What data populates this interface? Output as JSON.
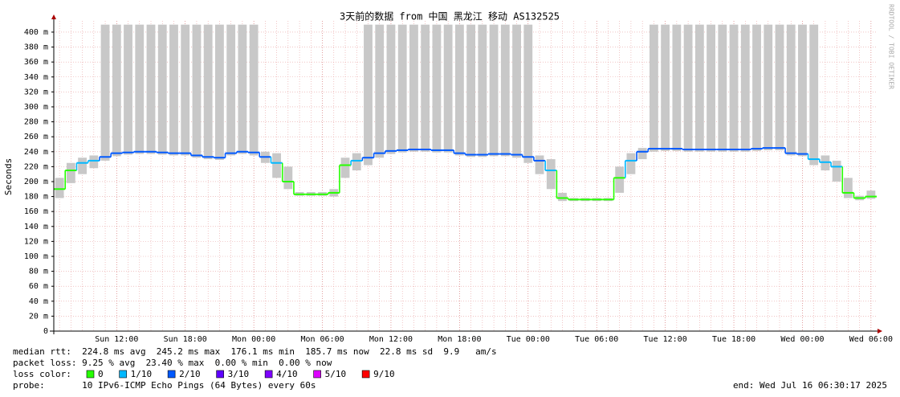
{
  "chart_data": {
    "type": "line",
    "title": "3天前的数据 from 中国 黑龙江 移动 AS132525",
    "y_label": "Seconds",
    "watermark": "RRDTOOL / TOBI OETIKER",
    "categories": [
      null,
      null,
      null,
      null,
      null,
      "Sun 12:00",
      null,
      null,
      null,
      null,
      null,
      "Sun 18:00",
      null,
      null,
      null,
      null,
      null,
      "Mon 00:00",
      null,
      null,
      null,
      null,
      null,
      "Mon 06:00",
      null,
      null,
      null,
      null,
      null,
      "Mon 12:00",
      null,
      null,
      null,
      null,
      null,
      "Mon 18:00",
      null,
      null,
      null,
      null,
      null,
      "Tue 00:00",
      null,
      null,
      null,
      null,
      null,
      "Tue 06:00",
      null,
      null,
      null,
      null,
      null,
      "Tue 12:00",
      null,
      null,
      null,
      null,
      null,
      "Tue 18:00",
      null,
      null,
      null,
      null,
      null,
      "Wed 00:00",
      null,
      null,
      null,
      null,
      null,
      "Wed 06:00"
    ],
    "series": [
      {
        "name": "median rtt",
        "values": [
          0.19,
          0.215,
          0.225,
          0.228,
          0.233,
          0.238,
          0.239,
          0.24,
          0.24,
          0.239,
          0.238,
          0.238,
          0.235,
          0.233,
          0.232,
          0.238,
          0.24,
          0.239,
          0.233,
          0.225,
          0.2,
          0.183,
          0.183,
          0.183,
          0.185,
          0.222,
          0.228,
          0.232,
          0.238,
          0.241,
          0.242,
          0.243,
          0.243,
          0.242,
          0.242,
          0.238,
          0.236,
          0.236,
          0.237,
          0.237,
          0.236,
          0.233,
          0.228,
          0.215,
          0.178,
          0.176,
          0.176,
          0.176,
          0.176,
          0.205,
          0.228,
          0.24,
          0.244,
          0.244,
          0.244,
          0.243,
          0.243,
          0.243,
          0.243,
          0.243,
          0.243,
          0.244,
          0.245,
          0.245,
          0.238,
          0.237,
          0.23,
          0.226,
          0.22,
          0.185,
          0.178,
          0.18
        ],
        "colors": [
          "#26ff00",
          "#26ff00",
          "#00b8ff",
          "#00b8ff",
          "#0059ff",
          "#0059ff",
          "#0059ff",
          "#0059ff",
          "#0059ff",
          "#0059ff",
          "#0059ff",
          "#0059ff",
          "#0059ff",
          "#0059ff",
          "#0059ff",
          "#0059ff",
          "#0059ff",
          "#0059ff",
          "#0059ff",
          "#00b8ff",
          "#26ff00",
          "#26ff00",
          "#26ff00",
          "#26ff00",
          "#26ff00",
          "#26ff00",
          "#00b8ff",
          "#0059ff",
          "#0059ff",
          "#0059ff",
          "#0059ff",
          "#0059ff",
          "#0059ff",
          "#0059ff",
          "#0059ff",
          "#0059ff",
          "#0059ff",
          "#0059ff",
          "#0059ff",
          "#0059ff",
          "#0059ff",
          "#0059ff",
          "#0059ff",
          "#00b8ff",
          "#26ff00",
          "#26ff00",
          "#26ff00",
          "#26ff00",
          "#26ff00",
          "#26ff00",
          "#00b8ff",
          "#0059ff",
          "#0059ff",
          "#0059ff",
          "#0059ff",
          "#0059ff",
          "#0059ff",
          "#0059ff",
          "#0059ff",
          "#0059ff",
          "#0059ff",
          "#0059ff",
          "#0059ff",
          "#0059ff",
          "#0059ff",
          "#0059ff",
          "#00b8ff",
          "#00b8ff",
          "#00b8ff",
          "#26ff00",
          "#26ff00",
          "#26ff00"
        ]
      }
    ],
    "smoke": {
      "color": "#c8c8c8",
      "low": [
        0.178,
        0.198,
        0.21,
        0.218,
        0.228,
        0.234,
        0.236,
        0.237,
        0.237,
        0.236,
        0.235,
        0.235,
        0.232,
        0.23,
        0.229,
        0.235,
        0.237,
        0.235,
        0.225,
        0.205,
        0.19,
        0.181,
        0.181,
        0.181,
        0.18,
        0.205,
        0.215,
        0.222,
        0.232,
        0.237,
        0.239,
        0.24,
        0.24,
        0.239,
        0.239,
        0.235,
        0.233,
        0.233,
        0.234,
        0.234,
        0.232,
        0.225,
        0.21,
        0.19,
        0.174,
        0.174,
        0.174,
        0.174,
        0.174,
        0.185,
        0.21,
        0.23,
        0.24,
        0.241,
        0.241,
        0.24,
        0.24,
        0.24,
        0.24,
        0.24,
        0.24,
        0.241,
        0.242,
        0.242,
        0.235,
        0.234,
        0.222,
        0.215,
        0.2,
        0.178,
        0.175,
        0.177
      ],
      "high": [
        0.205,
        0.225,
        0.232,
        0.235,
        0.41,
        0.41,
        0.41,
        0.41,
        0.41,
        0.41,
        0.41,
        0.41,
        0.41,
        0.41,
        0.41,
        0.41,
        0.41,
        0.41,
        0.24,
        0.238,
        0.22,
        0.186,
        0.186,
        0.186,
        0.19,
        0.232,
        0.238,
        0.41,
        0.41,
        0.41,
        0.41,
        0.41,
        0.41,
        0.41,
        0.41,
        0.41,
        0.41,
        0.41,
        0.41,
        0.41,
        0.41,
        0.41,
        0.235,
        0.23,
        0.185,
        0.178,
        0.178,
        0.178,
        0.178,
        0.22,
        0.238,
        0.245,
        0.41,
        0.41,
        0.41,
        0.41,
        0.41,
        0.41,
        0.41,
        0.41,
        0.41,
        0.41,
        0.41,
        0.41,
        0.41,
        0.41,
        0.41,
        0.235,
        0.228,
        0.205,
        0.181,
        0.188
      ]
    },
    "ylim": [
      0,
      0.415
    ],
    "yticks": [
      0,
      {
        "value": 0.02,
        "label": "20 m"
      },
      {
        "value": 0.04,
        "label": "40 m"
      },
      {
        "value": 0.06,
        "label": "60 m"
      },
      {
        "value": 0.08,
        "label": "80 m"
      },
      {
        "value": 0.1,
        "label": "100 m"
      },
      {
        "value": 0.12,
        "label": "120 m"
      },
      {
        "value": 0.14,
        "label": "140 m"
      },
      {
        "value": 0.16,
        "label": "160 m"
      },
      {
        "value": 0.18,
        "label": "180 m"
      },
      {
        "value": 0.2,
        "label": "200 m"
      },
      {
        "value": 0.22,
        "label": "220 m"
      },
      {
        "value": 0.24,
        "label": "240 m"
      },
      {
        "value": 0.26,
        "label": "260 m"
      },
      {
        "value": 0.28,
        "label": "280 m"
      },
      {
        "value": 0.3,
        "label": "300 m"
      },
      {
        "value": 0.32,
        "label": "320 m"
      },
      {
        "value": 0.34,
        "label": "340 m"
      },
      {
        "value": 0.36,
        "label": "360 m"
      },
      {
        "value": 0.38,
        "label": "380 m"
      },
      {
        "value": 0.4,
        "label": "400 m"
      }
    ],
    "grid": true,
    "stats": [
      "median rtt:  224.8 ms avg  245.2 ms max  176.1 ms min  185.7 ms now  22.8 ms sd  9.9   am/s",
      "packet loss: 9.25 % avg  23.40 % max  0.00 % min  0.00 % now"
    ],
    "loss_legend": {
      "label": "loss color:",
      "items": [
        {
          "label": "0",
          "color": "#26ff00"
        },
        {
          "label": "1/10",
          "color": "#00b8ff"
        },
        {
          "label": "2/10",
          "color": "#0059ff"
        },
        {
          "label": "3/10",
          "color": "#5e00ff"
        },
        {
          "label": "4/10",
          "color": "#7e00ff"
        },
        {
          "label": "5/10",
          "color": "#dd00ff"
        },
        {
          "label": "9/10",
          "color": "#ff0000"
        }
      ]
    },
    "probe": "probe:       10 IPv6-ICMP Echo Pings (64 Bytes) every 60s",
    "end": "end: Wed Jul 16 06:30:17 2025"
  }
}
